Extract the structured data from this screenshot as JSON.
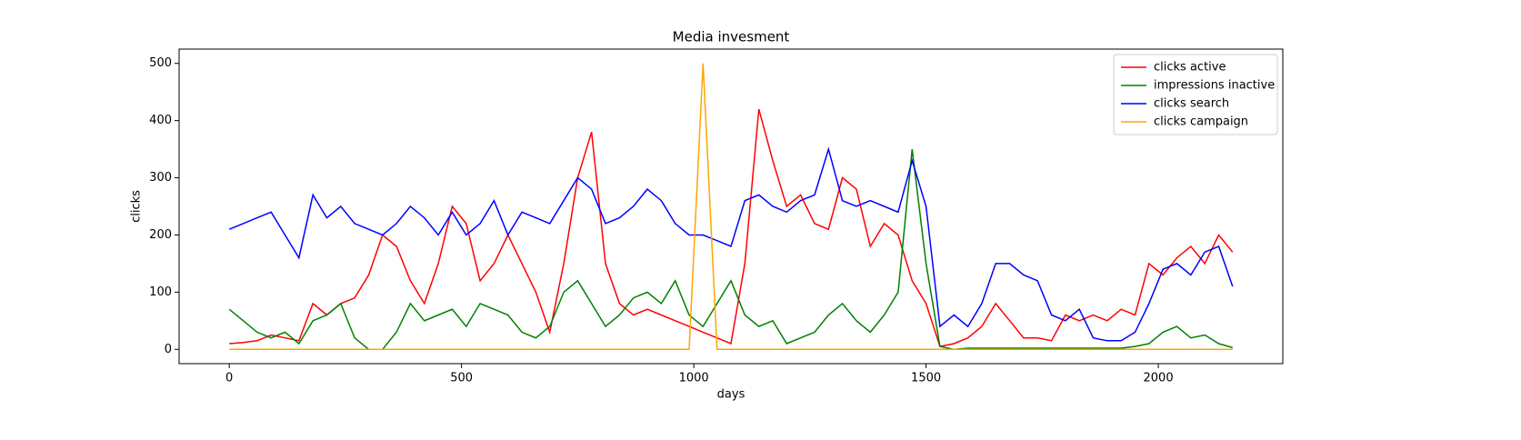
{
  "chart_data": {
    "type": "line",
    "title": "Media invesment",
    "xlabel": "days",
    "ylabel": "clicks",
    "xlim": [
      -108,
      2268
    ],
    "ylim": [
      -25,
      525
    ],
    "xticks": [
      0,
      500,
      1000,
      1500,
      2000
    ],
    "yticks": [
      0,
      100,
      200,
      300,
      400,
      500
    ],
    "legend": "upper right",
    "grid": false,
    "x": [
      0,
      30,
      60,
      90,
      120,
      150,
      180,
      210,
      240,
      270,
      300,
      330,
      360,
      390,
      420,
      450,
      480,
      510,
      540,
      570,
      600,
      630,
      660,
      690,
      720,
      750,
      780,
      810,
      840,
      870,
      900,
      930,
      960,
      990,
      1020,
      1050,
      1080,
      1110,
      1140,
      1170,
      1200,
      1230,
      1260,
      1290,
      1320,
      1350,
      1380,
      1410,
      1440,
      1470,
      1500,
      1530,
      1560,
      1590,
      1620,
      1650,
      1680,
      1710,
      1740,
      1770,
      1800,
      1830,
      1860,
      1890,
      1920,
      1950,
      1980,
      2010,
      2040,
      2070,
      2100,
      2130,
      2160
    ],
    "series": [
      {
        "name": "clicks active",
        "color": "red",
        "values": [
          10,
          12,
          15,
          25,
          20,
          15,
          80,
          60,
          80,
          90,
          130,
          200,
          180,
          120,
          80,
          150,
          250,
          220,
          120,
          150,
          200,
          150,
          100,
          30,
          150,
          300,
          380,
          150,
          80,
          60,
          70,
          60,
          50,
          40,
          30,
          20,
          10,
          150,
          420,
          330,
          250,
          270,
          220,
          210,
          300,
          280,
          180,
          220,
          200,
          120,
          80,
          5,
          10,
          20,
          40,
          80,
          50,
          20,
          20,
          15,
          60,
          50,
          60,
          50,
          70,
          60,
          150,
          130,
          160,
          180,
          150,
          200,
          170
        ]
      },
      {
        "name": "impressions inactive",
        "color": "green",
        "values": [
          70,
          50,
          30,
          20,
          30,
          10,
          50,
          60,
          80,
          20,
          0,
          0,
          30,
          80,
          50,
          60,
          70,
          40,
          80,
          70,
          60,
          30,
          20,
          40,
          100,
          120,
          80,
          40,
          60,
          90,
          100,
          80,
          120,
          60,
          40,
          80,
          120,
          60,
          40,
          50,
          10,
          20,
          30,
          60,
          80,
          50,
          30,
          60,
          100,
          350,
          150,
          5,
          0,
          2,
          2,
          2,
          2,
          2,
          2,
          2,
          2,
          2,
          2,
          2,
          2,
          5,
          10,
          30,
          40,
          20,
          25,
          10,
          3
        ]
      },
      {
        "name": "clicks search",
        "color": "blue",
        "values": [
          210,
          220,
          230,
          240,
          200,
          160,
          270,
          230,
          250,
          220,
          210,
          200,
          220,
          250,
          230,
          200,
          240,
          200,
          220,
          260,
          200,
          240,
          230,
          220,
          260,
          300,
          280,
          220,
          230,
          250,
          280,
          260,
          220,
          200,
          200,
          190,
          180,
          260,
          270,
          250,
          240,
          260,
          270,
          350,
          260,
          250,
          260,
          250,
          240,
          330,
          250,
          40,
          60,
          40,
          80,
          150,
          150,
          130,
          120,
          60,
          50,
          70,
          20,
          15,
          15,
          30,
          80,
          140,
          150,
          130,
          170,
          180,
          110
        ]
      },
      {
        "name": "clicks campaign",
        "color": "orange",
        "values": [
          0,
          0,
          0,
          0,
          0,
          0,
          0,
          0,
          0,
          0,
          0,
          0,
          0,
          0,
          0,
          0,
          0,
          0,
          0,
          0,
          0,
          0,
          0,
          0,
          0,
          0,
          0,
          0,
          0,
          0,
          0,
          0,
          0,
          0,
          500,
          0,
          0,
          0,
          0,
          0,
          0,
          0,
          0,
          0,
          0,
          0,
          0,
          0,
          0,
          0,
          0,
          0,
          0,
          0,
          0,
          0,
          0,
          0,
          0,
          0,
          0,
          0,
          0,
          0,
          0,
          0,
          0,
          0,
          0,
          0,
          0,
          0,
          0
        ]
      }
    ]
  }
}
